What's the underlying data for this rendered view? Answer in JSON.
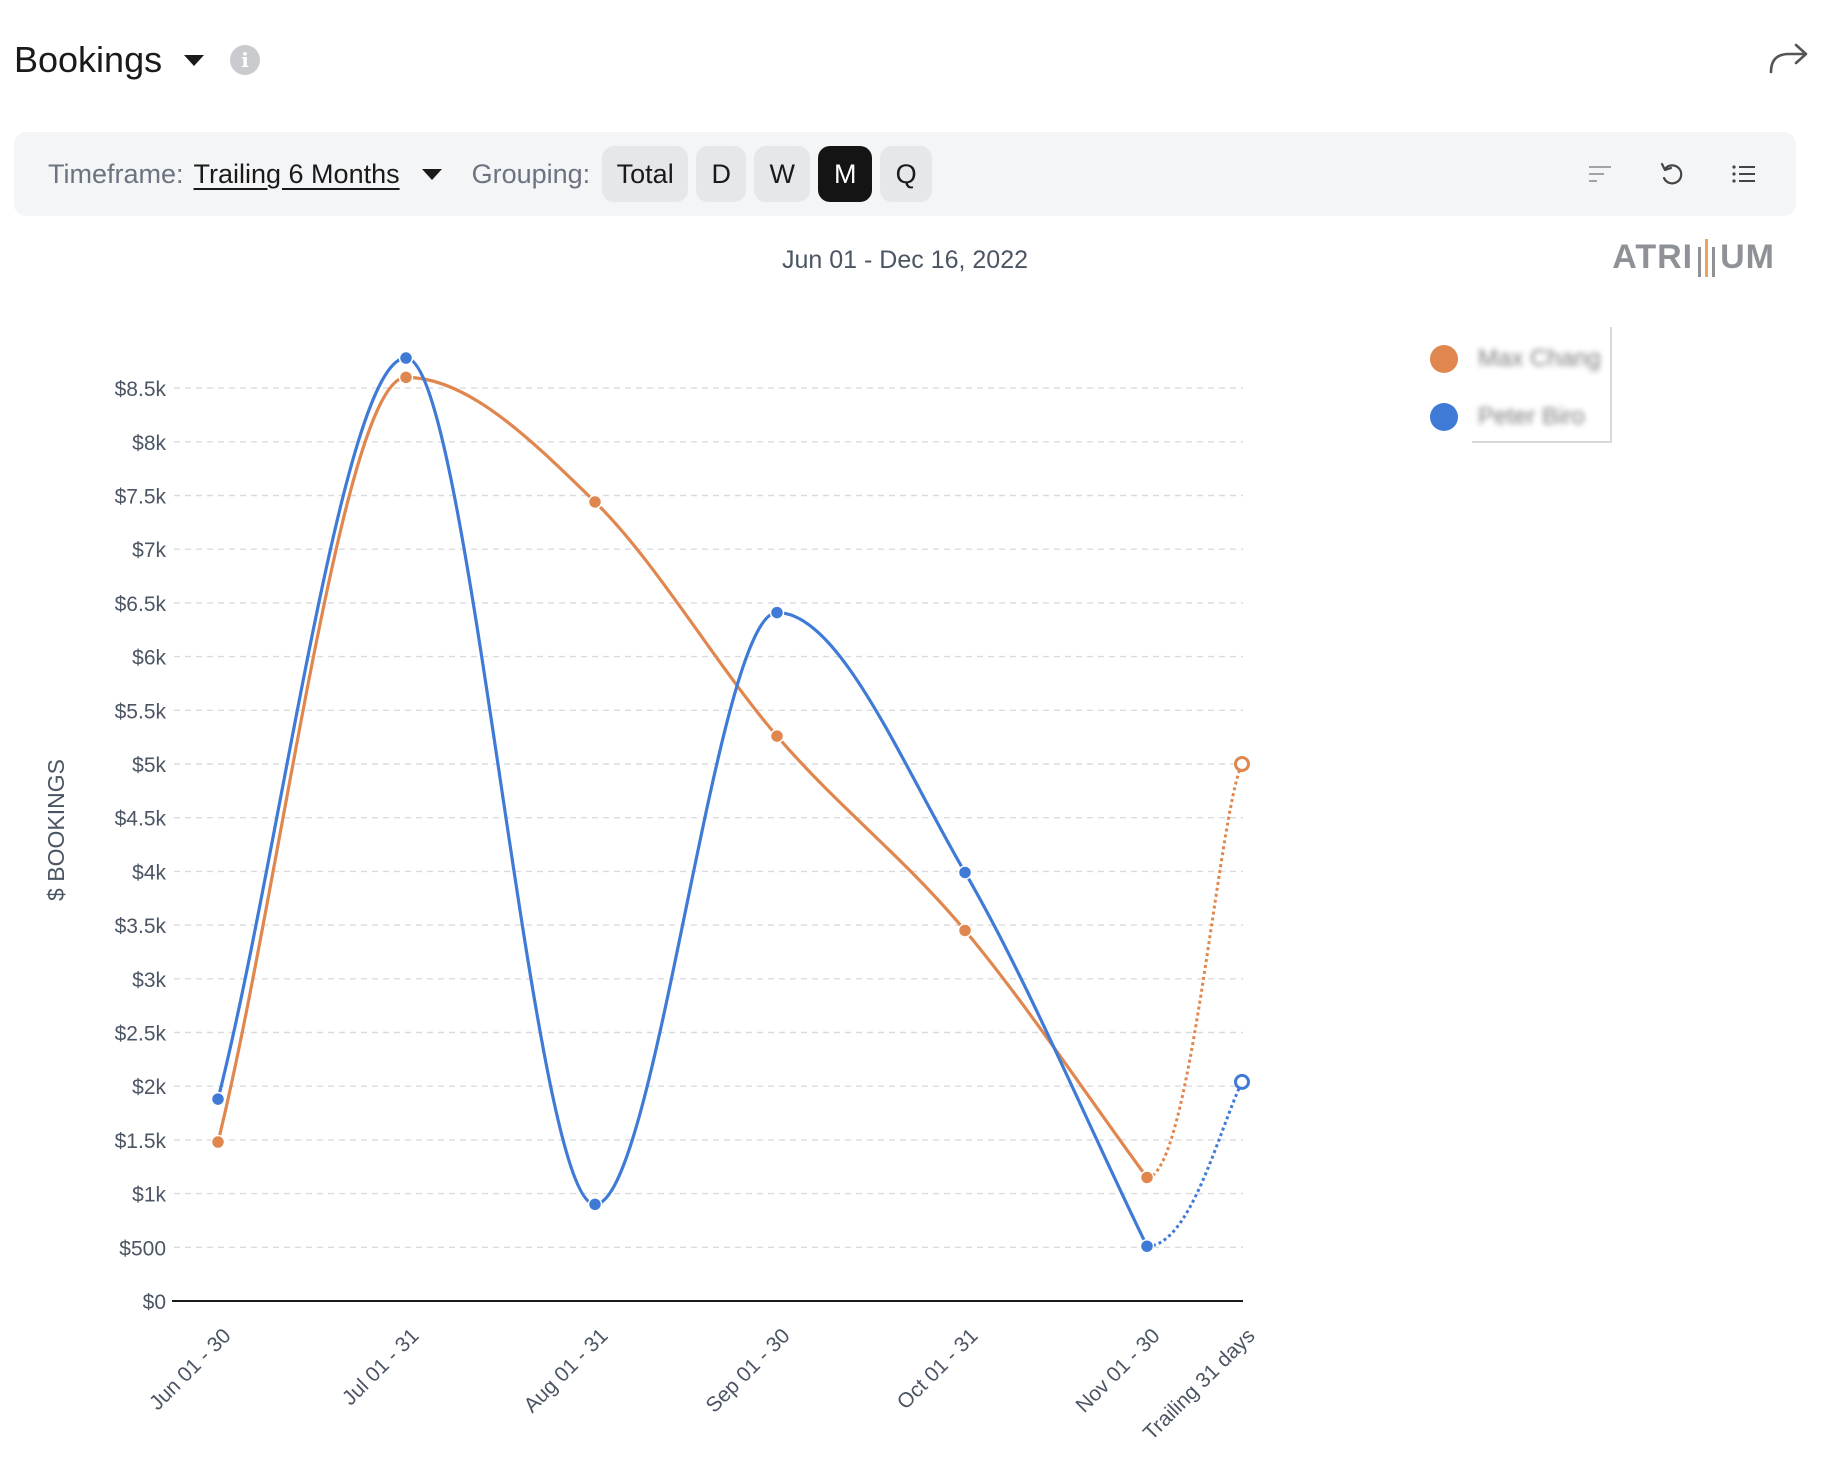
{
  "header": {
    "title": "Bookings"
  },
  "toolbar": {
    "timeframe_label": "Timeframe:",
    "timeframe_value": "Trailing 6 Months",
    "grouping_label": "Grouping:",
    "grouping_options": [
      "Total",
      "D",
      "W",
      "M",
      "Q"
    ],
    "grouping_selected": "M"
  },
  "date_range": "Jun 01 - Dec 16, 2022",
  "logo": {
    "left": "ATRI",
    "right": "UM"
  },
  "colors": {
    "series1": "#e0874f",
    "series2": "#3f7bd6",
    "accent_dark": "#141414"
  },
  "icons": {
    "share": "share-arrow-icon",
    "sort": "sort-icon",
    "undo": "undo-icon",
    "list": "list-icon",
    "info": "info-icon"
  },
  "chart_data": {
    "type": "line",
    "title": "",
    "xlabel": "",
    "ylabel": "$ BOOKINGS",
    "ylim": [
      0,
      8500
    ],
    "y_ticks": [
      "$0",
      "$500",
      "$1k",
      "$1.5k",
      "$2k",
      "$2.5k",
      "$3k",
      "$3.5k",
      "$4k",
      "$4.5k",
      "$5k",
      "$5.5k",
      "$6k",
      "$6.5k",
      "$7k",
      "$7.5k",
      "$8k",
      "$8.5k"
    ],
    "categories": [
      "Jun 01 - 30",
      "Jul 01 - 31",
      "Aug 01 - 31",
      "Sep 01 - 30",
      "Oct 01 - 31",
      "Nov 01 - 30",
      "Trailing 31 days"
    ],
    "grid": true,
    "legend_position": "top-right",
    "projected_last_point": true,
    "series": [
      {
        "name": "Max Chang",
        "values": [
          1480,
          8600,
          7440,
          5260,
          3450,
          1150,
          5000
        ]
      },
      {
        "name": "Peter Biro",
        "values": [
          1880,
          8780,
          900,
          6410,
          3990,
          510,
          2040
        ]
      }
    ]
  }
}
